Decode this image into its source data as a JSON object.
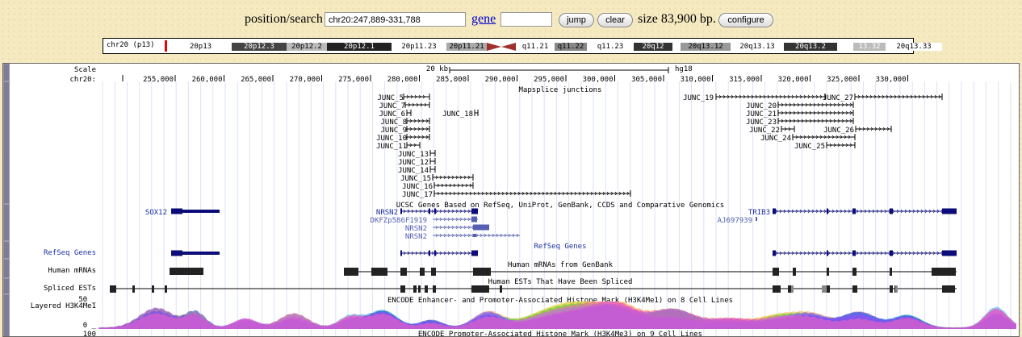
{
  "search": {
    "position_label": "position/search",
    "position_value": "chr20:247,889-331,788",
    "gene_label": "gene",
    "gene_value": "",
    "jump_label": "jump",
    "clear_label": "clear",
    "size_text": "size 83,900 bp.",
    "configure_label": "configure"
  },
  "ideogram": {
    "chrom_label": "chr20 (p13)",
    "bands": [
      {
        "name": "20p13",
        "color": "#ffffff",
        "text": "#000"
      },
      {
        "name": "20p12.3",
        "color": "#444444",
        "text": "#fff"
      },
      {
        "name": "20p12.2",
        "color": "#bbbbbb",
        "text": "#000"
      },
      {
        "name": "20p12.1",
        "color": "#222222",
        "text": "#fff"
      },
      {
        "name": "20p11.23",
        "color": "#ffffff",
        "text": "#000"
      },
      {
        "name": "20p11.21",
        "color": "#aaaaaa",
        "text": "#000"
      },
      {
        "name": "",
        "color": "#a0302a",
        "text": "#fff"
      },
      {
        "name": "q11.21",
        "color": "#ffffff",
        "text": "#000"
      },
      {
        "name": "q11.22",
        "color": "#888888",
        "text": "#000"
      },
      {
        "name": "q11.23",
        "color": "#ffffff",
        "text": "#000"
      },
      {
        "name": "20q12",
        "color": "#333333",
        "text": "#fff"
      },
      {
        "name": "",
        "color": "#ffffff",
        "text": "#000"
      },
      {
        "name": "20q13.12",
        "color": "#999999",
        "text": "#000"
      },
      {
        "name": "20q13.13",
        "color": "#ffffff",
        "text": "#000"
      },
      {
        "name": "20q13.2",
        "color": "#333333",
        "text": "#fff"
      },
      {
        "name": "",
        "color": "#ffffff",
        "text": "#000"
      },
      {
        "name": "13.32",
        "color": "#bbbbbb",
        "text": "#fff"
      },
      {
        "name": "20q13.33",
        "color": "#ffffff",
        "text": "#000"
      }
    ]
  },
  "tracks": {
    "scale_label": "Scale",
    "chrom_label": "chr20:",
    "scale_bar_text": "20 kb",
    "assembly": "hg18",
    "ticks": [
      "255,000",
      "260,000",
      "265,000",
      "270,000",
      "275,000",
      "280,000",
      "285,000",
      "290,000",
      "295,000",
      "300,000",
      "305,000",
      "310,000",
      "315,000",
      "320,000",
      "325,000",
      "330,000"
    ],
    "junctions_title": "Mapsplice junctions",
    "junctions": [
      "JUNC_5",
      "JUNC_7",
      "JUNC_6",
      "JUNC_18",
      "JUNC_8",
      "JUNC_9",
      "JUNC_10",
      "JUNC_11",
      "JUNC_13",
      "JUNC_12",
      "JUNC_14",
      "JUNC_15",
      "JUNC_16",
      "JUNC_17",
      "JUNC_19",
      "JUNC_27",
      "JUNC_20",
      "JUNC_21",
      "JUNC_23",
      "JUNC_22",
      "JUNC_26",
      "JUNC_24",
      "JUNC_25"
    ],
    "ucsc_title": "UCSC Genes Based on RefSeq, UniProt, GenBank, CCDS and Comparative Genomics",
    "genes": [
      "SOX12",
      "NRSN2",
      "DKFZp586F1919",
      "NRSN2",
      "NRSN2",
      "TRIB3",
      "AJ697939"
    ],
    "refseq_label": "RefSeq Genes",
    "refseq_title": "RefSeq Genes",
    "mrna_label": "Human mRNAs",
    "mrna_title": "Human mRNAs from GenBank",
    "est_label": "Spliced ESTs",
    "est_title": "Human ESTs That Have Been Spliced",
    "h3k4me1_label": "Layered H3K4Me1",
    "h3k4me1_title": "ENCODE Enhancer- and Promoter-Associated Histone Mark (H3K4Me1) on 8 Cell Lines",
    "h3k4me1_max": "50 _",
    "h3k4me1_min": "0 _",
    "h3k4me3_max": "100",
    "h3k4me3_title": "ENCODE Promoter-Associated Histone Mark (H3K4Me3) on 9 Cell Lines",
    "colors": {
      "gene": "#0c0c78",
      "gene_light": "#5560b0",
      "label_blue": "#1c2fa0"
    }
  }
}
